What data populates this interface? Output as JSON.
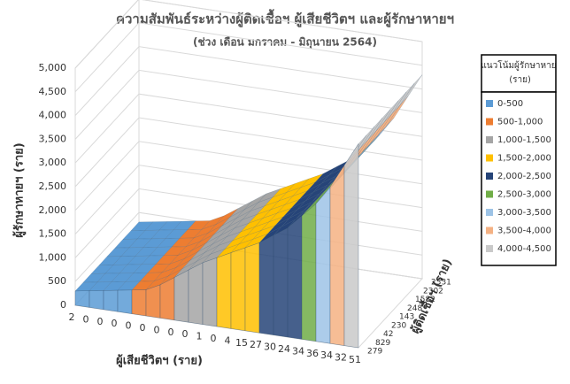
{
  "chart_data": {
    "type": "surface3d",
    "title": "ความสัมพันธ์ระหว่างผู้ติดเชื้อฯ ผู้เสียชีวิตฯ และผู้รักษาหายฯ",
    "subtitle": "(ช่วง เดือน มกราคม - มิถุนายน 2564)",
    "z_label": "ผู้รักษาหายฯ (ราย)",
    "x_label": "ผู้เสียชีวิตฯ (ราย)",
    "depth_label": "ผู้ติดเชื้อฯ (ราย)",
    "categories": [
      "2",
      "0",
      "0",
      "0",
      "0",
      "0",
      "0",
      "0",
      "0",
      "1",
      "0",
      "4",
      "15",
      "27",
      "30",
      "24",
      "34",
      "36",
      "34",
      "32",
      "51"
    ],
    "depth_categories": [
      "279",
      "829",
      "42",
      "230",
      "143",
      "248",
      "1582",
      "2302",
      "2331"
    ],
    "values": [
      300,
      350,
      400,
      450,
      500,
      550,
      700,
      900,
      1100,
      1300,
      1450,
      1600,
      1750,
      1900,
      2100,
      2300,
      2600,
      2900,
      3300,
      3800,
      4300
    ],
    "ylim": [
      0,
      5000
    ],
    "yticks": [
      0,
      500,
      {
        "value": 1000,
        "label": "1,000"
      },
      {
        "value": 1500,
        "label": "1,500"
      },
      {
        "value": 2000,
        "label": "2,000"
      },
      {
        "value": 2500,
        "label": "2,500"
      },
      {
        "value": 3000,
        "label": "3,000"
      },
      {
        "value": 3500,
        "label": "3,500"
      },
      {
        "value": 4000,
        "label": "4,000"
      },
      {
        "value": 4500,
        "label": "4,500"
      },
      {
        "value": 5000,
        "label": "5,000"
      }
    ],
    "grid": true,
    "legend_title": "แนวโน้มผู้รักษาหาย (ราย)",
    "legend_position": "right",
    "bands": [
      {
        "name": "0-500",
        "range": [
          0,
          500
        ],
        "color": "#5b9bd5"
      },
      {
        "name": "500-1,000",
        "range": [
          500,
          1000
        ],
        "color": "#ed7d31"
      },
      {
        "name": "1,000-1,500",
        "range": [
          1000,
          1500
        ],
        "color": "#a5a5a5"
      },
      {
        "name": "1,500-2,000",
        "range": [
          1500,
          2000
        ],
        "color": "#ffc000"
      },
      {
        "name": "2,000-2,500",
        "range": [
          2000,
          2500
        ],
        "color": "#264478"
      },
      {
        "name": "2,500-3,000",
        "range": [
          2500,
          3000
        ],
        "color": "#70ad47"
      },
      {
        "name": "3,000-3,500",
        "range": [
          3000,
          3500
        ],
        "color": "#9dc3e6"
      },
      {
        "name": "3,500-4,000",
        "range": [
          3500,
          4000
        ],
        "color": "#f4b183"
      },
      {
        "name": "4,000-4,500",
        "range": [
          4000,
          4500
        ],
        "color": "#c9c9c9"
      }
    ]
  }
}
